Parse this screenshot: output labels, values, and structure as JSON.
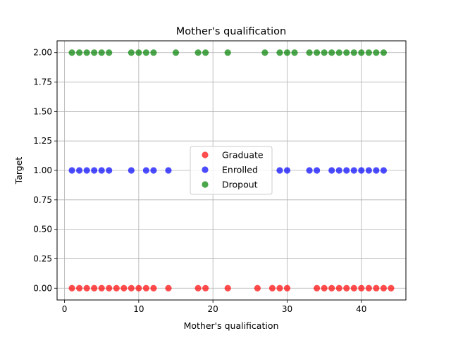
{
  "chart_data": {
    "type": "scatter",
    "title": "Mother's qualification",
    "xlabel": "Mother's qualification",
    "ylabel": "Target",
    "xlim": [
      -1,
      46
    ],
    "ylim": [
      -0.1,
      2.1
    ],
    "xticks": [
      0,
      10,
      20,
      30,
      40
    ],
    "yticks": [
      0.0,
      0.25,
      0.5,
      0.75,
      1.0,
      1.25,
      1.5,
      1.75,
      2.0
    ],
    "ytick_labels": [
      "0.00",
      "0.25",
      "0.50",
      "0.75",
      "1.00",
      "1.25",
      "1.50",
      "1.75",
      "2.00"
    ],
    "grid": true,
    "legend_position": "center",
    "series": [
      {
        "name": "Graduate",
        "color": "#ff0000",
        "y": 0,
        "x": [
          1,
          2,
          3,
          4,
          5,
          6,
          7,
          8,
          9,
          10,
          11,
          12,
          14,
          18,
          19,
          22,
          26,
          28,
          29,
          30,
          34,
          35,
          36,
          37,
          38,
          39,
          40,
          41,
          42,
          43,
          44
        ]
      },
      {
        "name": "Enrolled",
        "color": "#0000ff",
        "y": 1,
        "x": [
          1,
          2,
          3,
          4,
          5,
          6,
          9,
          11,
          12,
          14,
          29,
          30,
          33,
          34,
          36,
          37,
          38,
          39,
          40,
          41,
          42,
          43
        ]
      },
      {
        "name": "Dropout",
        "color": "#008000",
        "y": 2,
        "x": [
          1,
          2,
          3,
          4,
          5,
          6,
          9,
          10,
          11,
          12,
          15,
          18,
          19,
          22,
          27,
          29,
          30,
          31,
          33,
          34,
          35,
          36,
          37,
          38,
          39,
          40,
          41,
          42,
          43
        ]
      }
    ]
  }
}
